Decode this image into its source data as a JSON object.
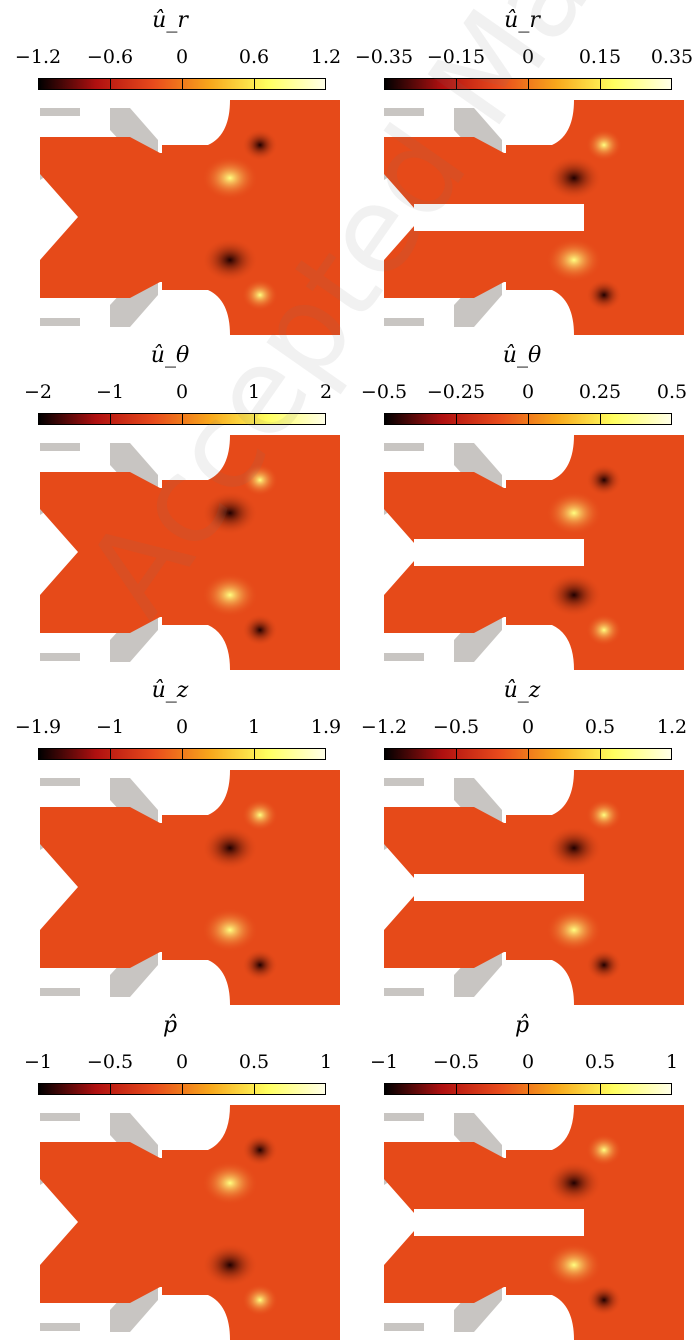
{
  "panels": [
    {
      "title": "û_r",
      "ticks": [
        "−1.2",
        "−0.6",
        "0",
        "0.6",
        "1.2"
      ]
    },
    {
      "title": "û_r",
      "ticks": [
        "−0.35",
        "−0.15",
        "0",
        "0.15",
        "0.35"
      ]
    },
    {
      "title": "û_θ",
      "ticks": [
        "−2",
        "−1",
        "0",
        "1",
        "2"
      ]
    },
    {
      "title": "û_θ",
      "ticks": [
        "−0.5",
        "−0.25",
        "0",
        "0.25",
        "0.5"
      ]
    },
    {
      "title": "û_z",
      "ticks": [
        "−1.9",
        "−1",
        "0",
        "1",
        "1.9"
      ]
    },
    {
      "title": "û_z",
      "ticks": [
        "−1.2",
        "−0.5",
        "0",
        "0.5",
        "1.2"
      ]
    },
    {
      "title": "p̂",
      "ticks": [
        "−1",
        "−0.5",
        "0",
        "0.5",
        "1"
      ]
    },
    {
      "title": "p̂",
      "ticks": [
        "−1",
        "−0.5",
        "0",
        "0.5",
        "1"
      ]
    }
  ],
  "watermark": "Accepted Manuscript Not Copyedited",
  "colors": {
    "background_field": "#e64a19",
    "solid": "#c8c5c2",
    "colormap": [
      "#000000",
      "#b01010",
      "#e84a1c",
      "#f8a81c",
      "#ffff60",
      "#ffffe8"
    ]
  }
}
